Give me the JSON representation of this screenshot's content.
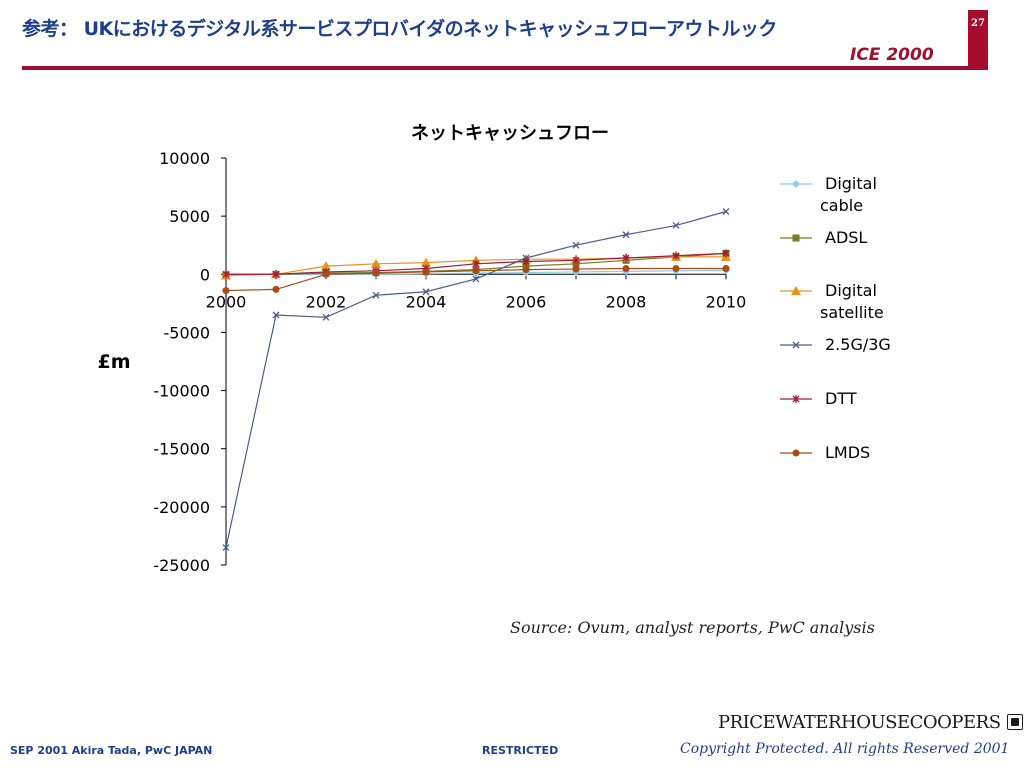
{
  "header": {
    "title": "参考： UKにおけるデジタル系サービスプロバイダのネットキャッシュフローアウトルック",
    "subtitle": "ICE 2000",
    "page_number": "27"
  },
  "chart_data": {
    "type": "line",
    "title": "ネットキャッシュフロー",
    "ylabel": "£m",
    "xlabel": "",
    "x": [
      2000,
      2001,
      2002,
      2003,
      2004,
      2005,
      2006,
      2007,
      2008,
      2009,
      2010
    ],
    "x_ticks": [
      "2000",
      "2002",
      "2004",
      "2006",
      "2008",
      "2010"
    ],
    "y_ticks": [
      "10000",
      "5000",
      "0",
      "-5000",
      "-10000",
      "-15000",
      "-20000",
      "-25000"
    ],
    "ylim": [
      -25000,
      10000
    ],
    "grid": false,
    "legend_position": "right",
    "series": [
      {
        "name": "Digital cable",
        "color": "#87cfe6",
        "marker": "diamond",
        "values": [
          0,
          0,
          0,
          0,
          50,
          100,
          150,
          200,
          250,
          300,
          350
        ]
      },
      {
        "name": "ADSL",
        "color": "#7b7a1e",
        "marker": "square",
        "values": [
          -50,
          0,
          100,
          150,
          250,
          400,
          700,
          900,
          1200,
          1500,
          1800
        ]
      },
      {
        "name": "Digital satellite",
        "color": "#e8921a",
        "marker": "triangle",
        "values": [
          -100,
          0,
          700,
          900,
          1000,
          1200,
          1300,
          1300,
          1400,
          1500,
          1500
        ]
      },
      {
        "name": "2.5G/3G",
        "color": "#4a5e8a",
        "marker": "x",
        "values": [
          -23500,
          -3500,
          -3700,
          -1800,
          -1500,
          -400,
          1400,
          2500,
          3400,
          4200,
          5400
        ]
      },
      {
        "name": "DTT",
        "color": "#a01a3c",
        "marker": "star",
        "values": [
          0,
          0,
          200,
          300,
          500,
          900,
          1100,
          1200,
          1400,
          1600,
          1800
        ]
      },
      {
        "name": "LMDS",
        "color": "#a84b17",
        "marker": "circle",
        "values": [
          -1400,
          -1300,
          0,
          100,
          200,
          300,
          400,
          450,
          500,
          500,
          500
        ]
      }
    ]
  },
  "legend": {
    "items": [
      {
        "line1": "Digital",
        "line2": "cable"
      },
      {
        "line1": "ADSL",
        "line2": ""
      },
      {
        "line1": "Digital",
        "line2": "satellite"
      },
      {
        "line1": "2.5G/3G",
        "line2": ""
      },
      {
        "line1": "DTT",
        "line2": ""
      },
      {
        "line1": "LMDS",
        "line2": ""
      }
    ]
  },
  "source": "Source: Ovum, analyst reports, PwC analysis",
  "logo": {
    "text": "PRICEWATERHOUSECOOPERS"
  },
  "footer": {
    "left": "SEP 2001  Akira Tada, PwC JAPAN",
    "middle": "RESTRICTED",
    "right": "Copyright Protected. All rights Reserved 2001"
  }
}
